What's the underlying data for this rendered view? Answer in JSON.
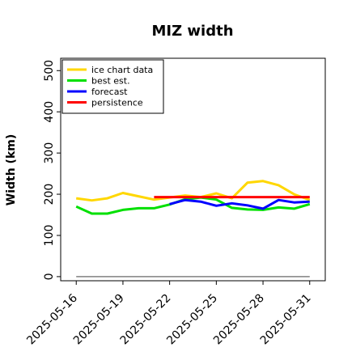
{
  "chart_data": {
    "type": "line",
    "title": "MIZ width",
    "xlabel": "",
    "ylabel": "Width (km)",
    "xlim": [
      "2025-05-15",
      "2025-06-01"
    ],
    "ylim": [
      -10,
      530
    ],
    "yticks": [
      0,
      100,
      200,
      300,
      400,
      500
    ],
    "xticks": [
      "2025-05-16",
      "2025-05-19",
      "2025-05-22",
      "2025-05-25",
      "2025-05-28",
      "2025-05-31"
    ],
    "highlight_xtick": "2025-05-22",
    "legend_position": "upper-left",
    "grid": false,
    "series": [
      {
        "name": "ice chart data",
        "color": "#ffd700",
        "x": [
          "2025-05-16",
          "2025-05-17",
          "2025-05-18",
          "2025-05-19",
          "2025-05-20",
          "2025-05-21",
          "2025-05-22",
          "2025-05-23",
          "2025-05-24",
          "2025-05-25",
          "2025-05-26",
          "2025-05-27",
          "2025-05-28",
          "2025-05-29",
          "2025-05-30",
          "2025-05-31"
        ],
        "values": [
          190,
          185,
          190,
          203,
          195,
          187,
          192,
          197,
          193,
          202,
          190,
          228,
          232,
          222,
          200,
          186
        ]
      },
      {
        "name": "best est.",
        "color": "#00e000",
        "x": [
          "2025-05-16",
          "2025-05-17",
          "2025-05-18",
          "2025-05-19",
          "2025-05-20",
          "2025-05-21",
          "2025-05-22",
          "2025-05-23",
          "2025-05-24",
          "2025-05-25",
          "2025-05-26",
          "2025-05-27",
          "2025-05-28",
          "2025-05-29",
          "2025-05-30",
          "2025-05-31"
        ],
        "values": [
          170,
          153,
          153,
          162,
          166,
          166,
          175,
          188,
          192,
          187,
          167,
          163,
          162,
          168,
          165,
          176
        ]
      },
      {
        "name": "forecast",
        "color": "#0000ff",
        "x": [
          "2025-05-22",
          "2025-05-23",
          "2025-05-24",
          "2025-05-25",
          "2025-05-26",
          "2025-05-27",
          "2025-05-28",
          "2025-05-29",
          "2025-05-30",
          "2025-05-31"
        ],
        "values": [
          176,
          186,
          182,
          172,
          178,
          173,
          165,
          186,
          180,
          182
        ]
      },
      {
        "name": "persistence",
        "color": "#ff0000",
        "x": [
          "2025-05-21",
          "2025-05-31"
        ],
        "values": [
          193,
          193
        ]
      },
      {
        "name": "",
        "color": "#808080",
        "x": [
          "2025-05-16",
          "2025-05-31"
        ],
        "values": [
          0,
          0
        ]
      }
    ]
  }
}
